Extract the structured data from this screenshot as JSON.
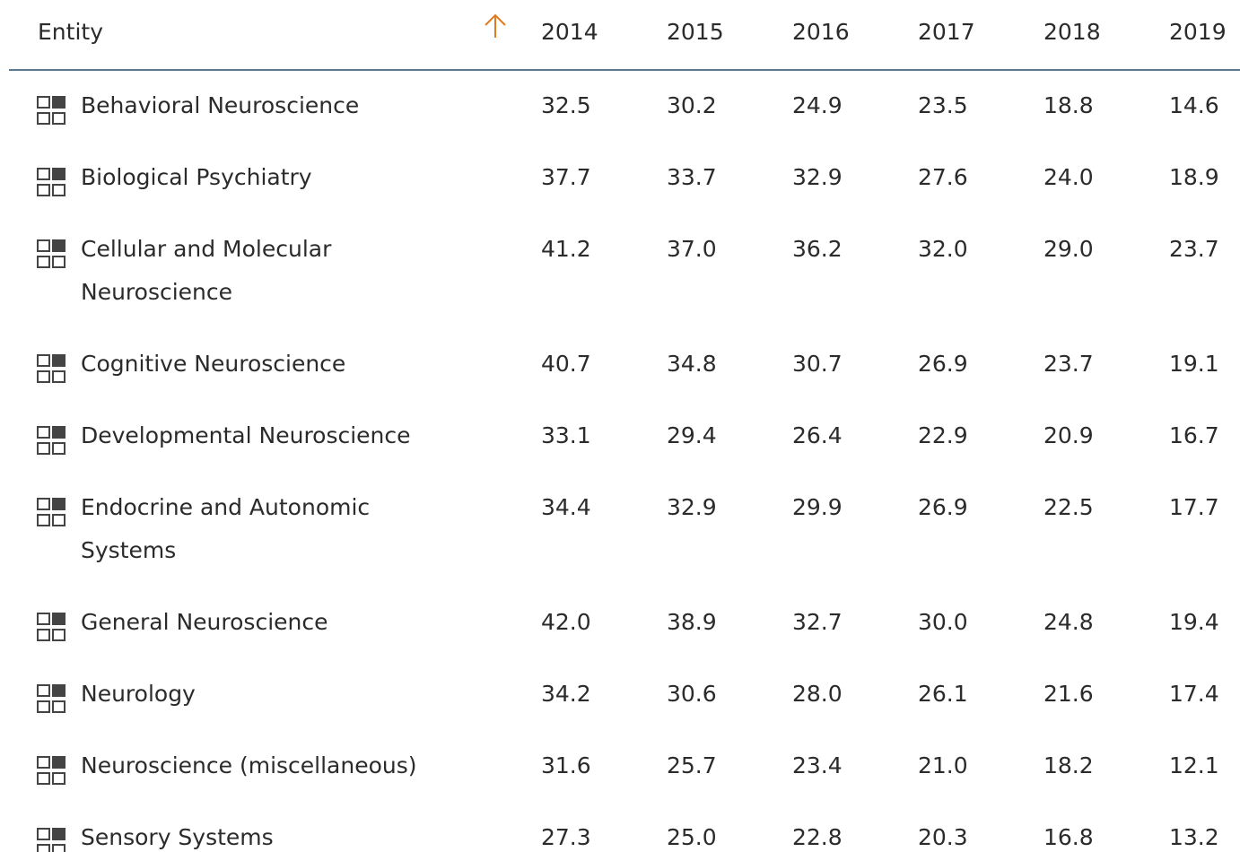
{
  "table": {
    "columns": [
      "Entity",
      "2014",
      "2015",
      "2016",
      "2017",
      "2018",
      "2019"
    ],
    "rows": [
      {
        "entity": "Behavioral Neuroscience",
        "values": [
          "32.5",
          "30.2",
          "24.9",
          "23.5",
          "18.8",
          "14.6"
        ]
      },
      {
        "entity": "Biological Psychiatry",
        "values": [
          "37.7",
          "33.7",
          "32.9",
          "27.6",
          "24.0",
          "18.9"
        ]
      },
      {
        "entity": "Cellular and Molecular Neuroscience",
        "values": [
          "41.2",
          "37.0",
          "36.2",
          "32.0",
          "29.0",
          "23.7"
        ]
      },
      {
        "entity": "Cognitive Neuroscience",
        "values": [
          "40.7",
          "34.8",
          "30.7",
          "26.9",
          "23.7",
          "19.1"
        ]
      },
      {
        "entity": "Developmental Neuroscience",
        "values": [
          "33.1",
          "29.4",
          "26.4",
          "22.9",
          "20.9",
          "16.7"
        ]
      },
      {
        "entity": "Endocrine and Autonomic Systems",
        "values": [
          "34.4",
          "32.9",
          "29.9",
          "26.9",
          "22.5",
          "17.7"
        ]
      },
      {
        "entity": "General Neuroscience",
        "values": [
          "42.0",
          "38.9",
          "32.7",
          "30.0",
          "24.8",
          "19.4"
        ]
      },
      {
        "entity": "Neurology",
        "values": [
          "34.2",
          "30.6",
          "28.0",
          "26.1",
          "21.6",
          "17.4"
        ]
      },
      {
        "entity": "Neuroscience (miscellaneous)",
        "values": [
          "31.6",
          "25.7",
          "23.4",
          "21.0",
          "18.2",
          "12.1"
        ]
      },
      {
        "entity": "Sensory Systems",
        "values": [
          "27.3",
          "25.0",
          "22.8",
          "20.3",
          "16.8",
          "13.2"
        ]
      }
    ]
  }
}
